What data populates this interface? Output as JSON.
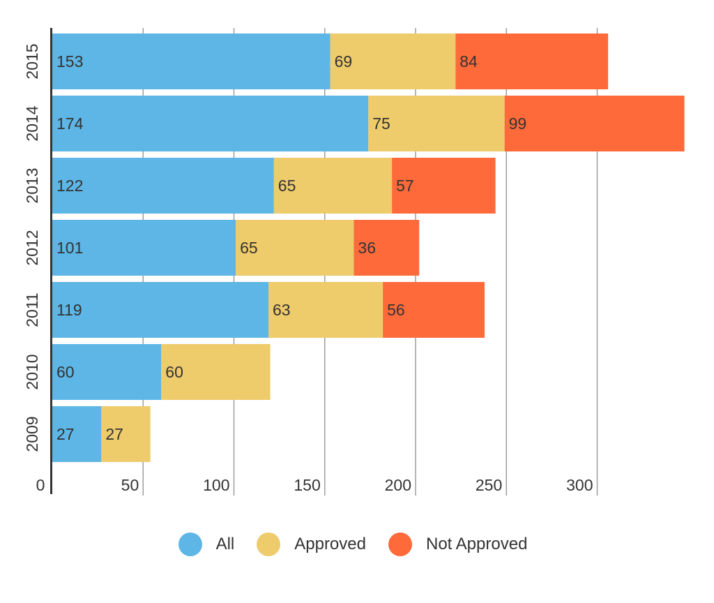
{
  "chart_data": {
    "type": "bar",
    "orientation": "horizontal",
    "stacked": true,
    "categories": [
      "2015",
      "2014",
      "2013",
      "2012",
      "2011",
      "2010",
      "2009"
    ],
    "series": [
      {
        "name": "All",
        "color": "#5DB6E5",
        "values": [
          153,
          174,
          122,
          101,
          119,
          60,
          27
        ]
      },
      {
        "name": "Approved",
        "color": "#EECB6B",
        "values": [
          69,
          75,
          65,
          65,
          63,
          60,
          27
        ]
      },
      {
        "name": "Not Approved",
        "color": "#FE6A3A",
        "values": [
          84,
          99,
          57,
          36,
          56,
          null,
          null
        ]
      }
    ],
    "xlim": [
      0,
      350
    ],
    "x_ticks": [
      "0",
      "50",
      "100",
      "150",
      "200",
      "250",
      "300"
    ],
    "grid": true,
    "legend_position": "bottom"
  }
}
